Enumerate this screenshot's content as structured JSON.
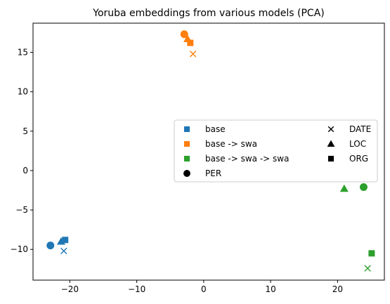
{
  "chart_data": {
    "type": "scatter",
    "title": "Yoruba embeddings from various models (PCA)",
    "xlabel": "",
    "ylabel": "",
    "xlim": [
      -25.5,
      27.0
    ],
    "ylim": [
      -13.9,
      18.7
    ],
    "xticks": [
      -20,
      -10,
      0,
      10,
      20
    ],
    "yticks": [
      -10,
      -5,
      0,
      5,
      10,
      15
    ],
    "xtick_labels": [
      "−20",
      "−10",
      "0",
      "10",
      "20"
    ],
    "ytick_labels": [
      "−10",
      "−5",
      "0",
      "5",
      "10",
      "15"
    ],
    "grid": false,
    "legend_position": "center-right",
    "models": [
      {
        "name": "base",
        "color": "#1f77b4"
      },
      {
        "name": "base -> swa",
        "color": "#ff7f0e"
      },
      {
        "name": "base -> swa -> swa",
        "color": "#2ca02c"
      }
    ],
    "entity_types": [
      {
        "name": "PER",
        "marker": "circle"
      },
      {
        "name": "DATE",
        "marker": "x"
      },
      {
        "name": "LOC",
        "marker": "triangle"
      },
      {
        "name": "ORG",
        "marker": "square"
      }
    ],
    "points": [
      {
        "model": "base",
        "entity": "PER",
        "x": -22.9,
        "y": -9.5
      },
      {
        "model": "base",
        "entity": "LOC",
        "x": -21.3,
        "y": -9.0
      },
      {
        "model": "base",
        "entity": "ORG",
        "x": -20.7,
        "y": -8.8
      },
      {
        "model": "base",
        "entity": "DATE",
        "x": -20.9,
        "y": -10.2
      },
      {
        "model": "base -> swa",
        "entity": "PER",
        "x": -2.9,
        "y": 17.3
      },
      {
        "model": "base -> swa",
        "entity": "LOC",
        "x": -2.4,
        "y": 16.7
      },
      {
        "model": "base -> swa",
        "entity": "ORG",
        "x": -2.0,
        "y": 16.2
      },
      {
        "model": "base -> swa",
        "entity": "DATE",
        "x": -1.6,
        "y": 14.8
      },
      {
        "model": "base -> swa -> swa",
        "entity": "LOC",
        "x": 21.0,
        "y": -2.3
      },
      {
        "model": "base -> swa -> swa",
        "entity": "PER",
        "x": 23.9,
        "y": -2.1
      },
      {
        "model": "base -> swa -> swa",
        "entity": "ORG",
        "x": 25.1,
        "y": -10.5
      },
      {
        "model": "base -> swa -> swa",
        "entity": "DATE",
        "x": 24.5,
        "y": -12.4
      }
    ],
    "legend_col1": [
      {
        "label": "base",
        "marker": "square",
        "color": "#1f77b4"
      },
      {
        "label": "base -> swa",
        "marker": "square",
        "color": "#ff7f0e"
      },
      {
        "label": "base -> swa -> swa",
        "marker": "square",
        "color": "#2ca02c"
      },
      {
        "label": "PER",
        "marker": "circle",
        "color": "#000000"
      }
    ],
    "legend_col2": [
      {
        "label": "DATE",
        "marker": "x",
        "color": "#000000"
      },
      {
        "label": "LOC",
        "marker": "triangle",
        "color": "#000000"
      },
      {
        "label": "ORG",
        "marker": "square",
        "color": "#000000"
      }
    ]
  }
}
